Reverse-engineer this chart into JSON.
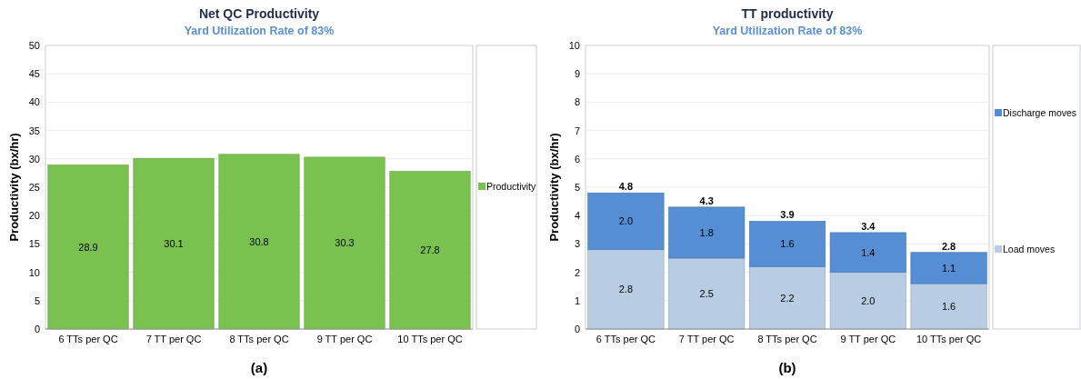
{
  "chart_data": [
    {
      "type": "bar",
      "title": "Net QC Productivity",
      "subtitle": "Yard Utilization Rate of 83%",
      "ylabel": "Productivity (bx/hr)",
      "categories": [
        "6 TTs per QC",
        "7 TT per QC",
        "8 TTs per QC",
        "9 TT per QC",
        "10 TTs per QC"
      ],
      "series": [
        {
          "name": "Productivity",
          "color": "#7ac250",
          "values": [
            28.9,
            30.1,
            30.8,
            30.3,
            27.8
          ]
        }
      ],
      "ylim": [
        0,
        50
      ],
      "yticks": [
        0,
        5,
        10,
        15,
        20,
        25,
        30,
        35,
        40,
        45,
        50
      ],
      "grid": "y",
      "legend": "right",
      "data_labels": true,
      "annotations": [
        "(a)"
      ]
    },
    {
      "type": "bar",
      "title": "TT productivity",
      "subtitle": "Yard Utilization Rate of 83%",
      "ylabel": "Productivity (bx/hr)",
      "categories": [
        "6 TTs per QC",
        "7 TT per QC",
        "8 TTs per QC",
        "9 TT per QC",
        "10 TTs per QC"
      ],
      "stacked": true,
      "series": [
        {
          "name": "Load moves",
          "color": "#b8cce4",
          "values": [
            2.8,
            2.5,
            2.2,
            2.0,
            1.6
          ],
          "value_labels": [
            "2.8",
            "2.5",
            "2.2",
            "2.0",
            "1.6"
          ]
        },
        {
          "name": "Discharge moves",
          "color": "#558ed5",
          "values": [
            2.0,
            1.8,
            1.6,
            1.4,
            1.1
          ],
          "value_labels": [
            "2.0",
            "1.8",
            "1.6",
            "1.4",
            "1.1"
          ]
        }
      ],
      "totals": [
        "4.8",
        "4.3",
        "3.9",
        "3.4",
        "2.8"
      ],
      "ylim": [
        0,
        10
      ],
      "yticks": [
        0,
        1,
        2,
        3,
        4,
        5,
        6,
        7,
        8,
        9,
        10
      ],
      "grid": "y",
      "legend": "right",
      "annotations": [
        "(b)"
      ]
    }
  ]
}
